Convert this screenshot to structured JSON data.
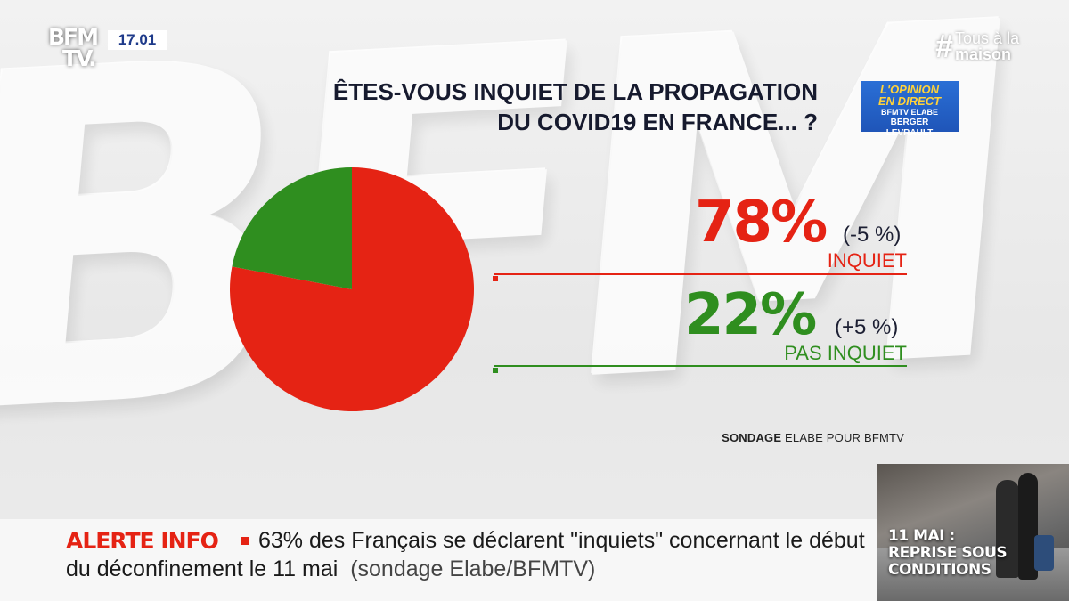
{
  "channel": {
    "logo_line1": "BFM",
    "logo_line2": "TV.",
    "time": "17.01",
    "hashtag_symbol": "#",
    "hashtag_line1": "Tous à la",
    "hashtag_line2": "maison"
  },
  "background_watermark": "BFM",
  "survey_badge": {
    "line1": "L'OPINION",
    "line2": "EN DIRECT",
    "line3": "BFMTV ELABE",
    "line4": "BERGER LEVRAULT"
  },
  "chart_data": {
    "type": "pie",
    "title_line1": "ÊTES-VOUS INQUIET DE LA PROPAGATION",
    "title_line2": "DU COVID19 EN FRANCE... ?",
    "slices": [
      {
        "label": "INQUIET",
        "value": 78,
        "display": "78%",
        "change": "(-5 %)",
        "color": "#e52314"
      },
      {
        "label": "PAS INQUIET",
        "value": 22,
        "display": "22%",
        "change": "(+5 %)",
        "color": "#2f8e1f"
      }
    ],
    "source_bold": "SONDAGE",
    "source_rest": " ELABE POUR BFMTV"
  },
  "ticker": {
    "alert_label": "ALERTE INFO",
    "text": "63% des Français se déclarent \"inquiets\" concernant le début du déconfinement le 11 mai",
    "source": "(sondage Elabe/BFMTV)"
  },
  "thumbnail": {
    "title_line1": "11 MAI :",
    "title_line2": "REPRISE SOUS",
    "title_line3": "CONDITIONS"
  }
}
